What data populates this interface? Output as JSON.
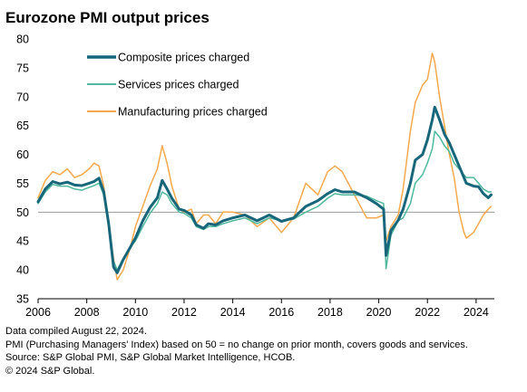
{
  "title": "Eurozone PMI output prices",
  "chart_data": {
    "type": "line",
    "title": "Eurozone PMI output prices",
    "xlabel": "",
    "ylabel": "",
    "xlim": [
      2006,
      2024.75
    ],
    "ylim": [
      35,
      80
    ],
    "yticks": [
      35,
      40,
      45,
      50,
      55,
      60,
      65,
      70,
      75,
      80
    ],
    "xticks": [
      2006,
      2008,
      2010,
      2012,
      2014,
      2016,
      2018,
      2020,
      2022,
      2024
    ],
    "reference_line": 50,
    "legend_position": "top-left",
    "grid": false,
    "series": [
      {
        "name": "Composite prices charged",
        "color": "#17667a",
        "width": 3,
        "points": [
          [
            2006.0,
            51.8
          ],
          [
            2006.3,
            54.0
          ],
          [
            2006.6,
            55.3
          ],
          [
            2006.9,
            54.9
          ],
          [
            2007.2,
            55.2
          ],
          [
            2007.5,
            54.7
          ],
          [
            2007.8,
            54.6
          ],
          [
            2008.1,
            55.0
          ],
          [
            2008.3,
            55.3
          ],
          [
            2008.5,
            55.9
          ],
          [
            2008.7,
            53.5
          ],
          [
            2008.9,
            48.0
          ],
          [
            2009.1,
            40.5
          ],
          [
            2009.25,
            39.5
          ],
          [
            2009.5,
            41.8
          ],
          [
            2009.8,
            44.0
          ],
          [
            2010.0,
            45.5
          ],
          [
            2010.3,
            48.5
          ],
          [
            2010.6,
            50.8
          ],
          [
            2010.9,
            52.5
          ],
          [
            2011.1,
            55.5
          ],
          [
            2011.3,
            54.0
          ],
          [
            2011.5,
            52.4
          ],
          [
            2011.8,
            50.5
          ],
          [
            2012.0,
            50.3
          ],
          [
            2012.3,
            49.5
          ],
          [
            2012.5,
            47.8
          ],
          [
            2012.8,
            47.2
          ],
          [
            2013.0,
            48.0
          ],
          [
            2013.3,
            47.8
          ],
          [
            2013.6,
            48.5
          ],
          [
            2014.0,
            49.0
          ],
          [
            2014.5,
            49.5
          ],
          [
            2015.0,
            48.5
          ],
          [
            2015.5,
            49.5
          ],
          [
            2016.0,
            48.4
          ],
          [
            2016.5,
            49.0
          ],
          [
            2017.0,
            51.0
          ],
          [
            2017.5,
            52.0
          ],
          [
            2017.9,
            53.2
          ],
          [
            2018.2,
            53.9
          ],
          [
            2018.5,
            53.5
          ],
          [
            2019.0,
            53.5
          ],
          [
            2019.5,
            52.5
          ],
          [
            2019.9,
            51.5
          ],
          [
            2020.2,
            50.5
          ],
          [
            2020.3,
            42.5
          ],
          [
            2020.5,
            46.8
          ],
          [
            2020.8,
            48.6
          ],
          [
            2021.0,
            50.5
          ],
          [
            2021.3,
            55.0
          ],
          [
            2021.5,
            59.0
          ],
          [
            2021.8,
            60.0
          ],
          [
            2022.0,
            62.5
          ],
          [
            2022.2,
            66.0
          ],
          [
            2022.3,
            68.2
          ],
          [
            2022.5,
            66.0
          ],
          [
            2022.7,
            63.5
          ],
          [
            2022.9,
            62.0
          ],
          [
            2023.1,
            60.0
          ],
          [
            2023.3,
            58.0
          ],
          [
            2023.6,
            55.0
          ],
          [
            2023.9,
            54.5
          ],
          [
            2024.1,
            54.4
          ],
          [
            2024.3,
            53.2
          ],
          [
            2024.5,
            52.5
          ],
          [
            2024.62,
            53.0
          ]
        ]
      },
      {
        "name": "Services prices charged",
        "color": "#4fb89d",
        "width": 1.5,
        "points": [
          [
            2006.0,
            51.5
          ],
          [
            2006.3,
            53.5
          ],
          [
            2006.6,
            54.8
          ],
          [
            2006.9,
            54.5
          ],
          [
            2007.2,
            54.5
          ],
          [
            2007.5,
            54.0
          ],
          [
            2007.8,
            53.8
          ],
          [
            2008.1,
            54.3
          ],
          [
            2008.3,
            54.6
          ],
          [
            2008.5,
            55.0
          ],
          [
            2008.7,
            53.0
          ],
          [
            2008.9,
            48.5
          ],
          [
            2009.1,
            41.5
          ],
          [
            2009.25,
            40.0
          ],
          [
            2009.5,
            42.0
          ],
          [
            2009.8,
            44.0
          ],
          [
            2010.0,
            45.0
          ],
          [
            2010.3,
            47.5
          ],
          [
            2010.6,
            49.8
          ],
          [
            2010.9,
            51.5
          ],
          [
            2011.1,
            53.5
          ],
          [
            2011.3,
            53.0
          ],
          [
            2011.5,
            51.5
          ],
          [
            2011.8,
            50.0
          ],
          [
            2012.0,
            49.8
          ],
          [
            2012.3,
            49.0
          ],
          [
            2012.5,
            47.5
          ],
          [
            2012.8,
            47.0
          ],
          [
            2013.0,
            47.5
          ],
          [
            2013.3,
            47.5
          ],
          [
            2013.6,
            48.0
          ],
          [
            2014.0,
            48.5
          ],
          [
            2014.5,
            49.0
          ],
          [
            2015.0,
            48.0
          ],
          [
            2015.5,
            49.0
          ],
          [
            2016.0,
            48.5
          ],
          [
            2016.5,
            48.8
          ],
          [
            2017.0,
            50.0
          ],
          [
            2017.5,
            51.0
          ],
          [
            2017.9,
            52.4
          ],
          [
            2018.2,
            53.2
          ],
          [
            2018.5,
            53.0
          ],
          [
            2019.0,
            53.0
          ],
          [
            2019.5,
            52.8
          ],
          [
            2019.9,
            52.0
          ],
          [
            2020.2,
            51.5
          ],
          [
            2020.3,
            40.2
          ],
          [
            2020.5,
            46.0
          ],
          [
            2020.8,
            48.5
          ],
          [
            2021.0,
            49.0
          ],
          [
            2021.3,
            51.5
          ],
          [
            2021.5,
            55.0
          ],
          [
            2021.8,
            56.5
          ],
          [
            2022.0,
            58.5
          ],
          [
            2022.2,
            61.0
          ],
          [
            2022.3,
            64.0
          ],
          [
            2022.5,
            63.0
          ],
          [
            2022.7,
            61.5
          ],
          [
            2022.9,
            60.5
          ],
          [
            2023.1,
            58.5
          ],
          [
            2023.3,
            57.5
          ],
          [
            2023.6,
            56.0
          ],
          [
            2023.9,
            56.0
          ],
          [
            2024.1,
            55.0
          ],
          [
            2024.3,
            54.0
          ],
          [
            2024.5,
            53.5
          ],
          [
            2024.62,
            53.5
          ]
        ]
      },
      {
        "name": "Manufacturing prices charged",
        "color": "#f5a94e",
        "width": 1.5,
        "points": [
          [
            2006.0,
            52.5
          ],
          [
            2006.3,
            55.5
          ],
          [
            2006.6,
            57.0
          ],
          [
            2006.9,
            56.5
          ],
          [
            2007.2,
            57.5
          ],
          [
            2007.5,
            56.0
          ],
          [
            2007.8,
            56.5
          ],
          [
            2008.1,
            57.5
          ],
          [
            2008.3,
            58.5
          ],
          [
            2008.5,
            58.0
          ],
          [
            2008.7,
            54.5
          ],
          [
            2008.9,
            48.0
          ],
          [
            2009.1,
            42.0
          ],
          [
            2009.25,
            38.3
          ],
          [
            2009.5,
            40.0
          ],
          [
            2009.8,
            44.0
          ],
          [
            2010.0,
            47.5
          ],
          [
            2010.3,
            51.0
          ],
          [
            2010.6,
            54.5
          ],
          [
            2010.9,
            57.5
          ],
          [
            2011.1,
            61.5
          ],
          [
            2011.3,
            58.5
          ],
          [
            2011.5,
            54.5
          ],
          [
            2011.8,
            50.5
          ],
          [
            2012.0,
            50.0
          ],
          [
            2012.3,
            50.5
          ],
          [
            2012.5,
            48.0
          ],
          [
            2012.8,
            49.5
          ],
          [
            2013.0,
            49.5
          ],
          [
            2013.3,
            48.0
          ],
          [
            2013.6,
            50.0
          ],
          [
            2014.0,
            50.0
          ],
          [
            2014.5,
            49.5
          ],
          [
            2015.0,
            47.5
          ],
          [
            2015.5,
            49.0
          ],
          [
            2016.0,
            46.5
          ],
          [
            2016.5,
            49.0
          ],
          [
            2017.0,
            55.0
          ],
          [
            2017.5,
            53.0
          ],
          [
            2017.9,
            57.0
          ],
          [
            2018.2,
            58.0
          ],
          [
            2018.5,
            57.0
          ],
          [
            2019.0,
            53.0
          ],
          [
            2019.5,
            49.0
          ],
          [
            2019.9,
            49.0
          ],
          [
            2020.2,
            49.5
          ],
          [
            2020.3,
            45.0
          ],
          [
            2020.5,
            47.5
          ],
          [
            2020.8,
            49.5
          ],
          [
            2021.0,
            54.0
          ],
          [
            2021.3,
            64.0
          ],
          [
            2021.5,
            69.0
          ],
          [
            2021.8,
            72.0
          ],
          [
            2022.0,
            73.0
          ],
          [
            2022.2,
            77.5
          ],
          [
            2022.3,
            76.0
          ],
          [
            2022.5,
            70.0
          ],
          [
            2022.7,
            65.0
          ],
          [
            2022.9,
            60.0
          ],
          [
            2023.1,
            56.0
          ],
          [
            2023.3,
            50.0
          ],
          [
            2023.5,
            46.5
          ],
          [
            2023.6,
            45.5
          ],
          [
            2023.9,
            46.5
          ],
          [
            2024.1,
            48.0
          ],
          [
            2024.3,
            49.5
          ],
          [
            2024.5,
            50.5
          ],
          [
            2024.62,
            51.0
          ]
        ]
      }
    ]
  },
  "footer": {
    "line1": "Data compiled August 22, 2024.",
    "line2": "PMI (Purchasing Managers' Index) based on 50 = no change on prior month, covers goods and services.",
    "line3": "Source: S&P Global PMI, S&P Global Market Intelligence, HCOB.",
    "line4": "© 2024 S&P Global."
  }
}
